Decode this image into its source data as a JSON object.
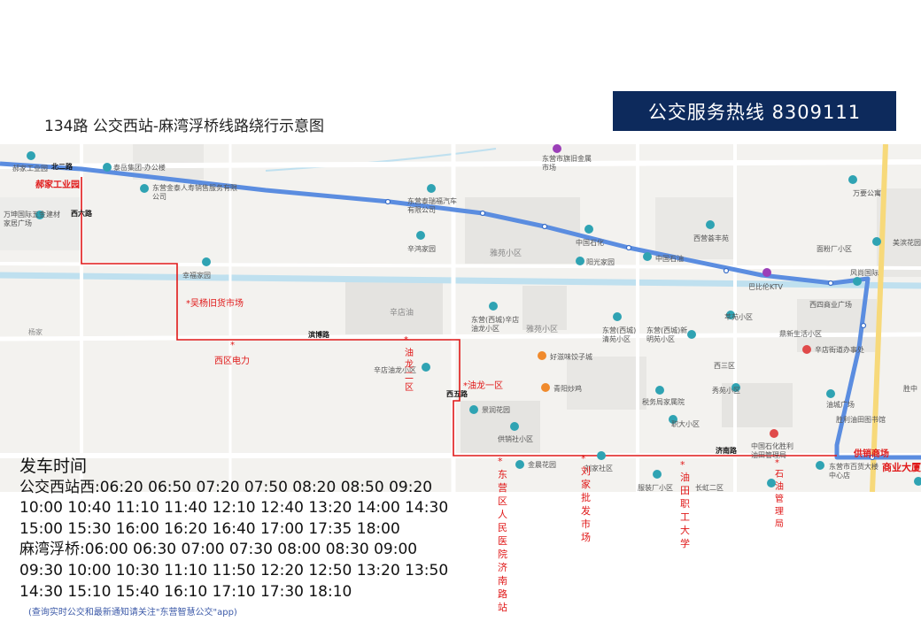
{
  "title": "134路 公交西站-麻湾浮桥线路绕行示意图",
  "hotline": "公交服务热线  8309111",
  "map": {
    "roads": {
      "north2": "北二路",
      "xiliu": "西六路",
      "binbo": "滨博路",
      "xiwu": "西五路",
      "jinan": "济南路"
    },
    "labels": {
      "haojia_small": "郝家工业园",
      "taiyue": "泰岳集团-办公楼",
      "dongying_jinye": "东营金泰人寿销售服务有限公司",
      "wanshen": "万坤国际五金建材家居广场",
      "dongying_tairui": "东营泰瑞福汽车有限公司",
      "xinhong": "辛鸿家园",
      "xinfu": "幸福家园",
      "xindian_oil": "辛店油",
      "yangjia": "杨家",
      "yatu": "雅苑小区",
      "yaju": "雅苑小区",
      "dongying_jiu": "东营市旗旧金属市场",
      "china_petro1": "中国石化",
      "china_petro2": "中国石油",
      "yangguang": "阳光家园",
      "xixiang": "西营荟丰苑",
      "wanyao": "万要公寓",
      "mianfen": "面粉厂小区",
      "meibin": "美滨花园",
      "fengshang": "风尚国际",
      "babilun": "巴比伦KTV",
      "xisi_square": "西四商业广场",
      "xingtaixi": "辛店油龙小区",
      "dongying_xicheng1": "东营(西城)辛店油龙小区",
      "dongying_xicheng2": "东营(西城)清苑小区",
      "dongying_xicheng3": "东营(西城)新明苑小区",
      "cuiyuan": "萃苑小区",
      "dingxin": "鼎新生活小区",
      "xindian_street": "辛店街道办事处",
      "haozi": "好滋味饺子城",
      "qingyang": "青阳炒鸡",
      "xisan": "西三区",
      "xiuyuan": "秀苑小区",
      "oilfield_kou": "油城广场",
      "shengli_library": "胜利油田图书馆",
      "shuiwu": "税务局家属院",
      "zhidaxiao": "职大小区",
      "jingrun": "景润花园",
      "gongxiao_she": "供销社小区",
      "jinchen": "金晨花园",
      "liujia_small": "刘家社区",
      "zhuangshi": "服装厂小区",
      "changhong": "长虹二区",
      "zhongguo_shili": "中国石化胜利油田管理局",
      "baihuo": "东营市百货大楼中心店",
      "shengxi": "胜中"
    },
    "stops": {
      "haojia": "郝家工业园",
      "wuyang": "*吴杨旧货市场",
      "xiqu": "西区电力",
      "youlong2": "油龙二区",
      "youlong1": "*油龙一区",
      "hospital": "东营区人民医院济南路站",
      "liujia": "刘家批发市场",
      "youtian": "油田职工大学",
      "shiyou": "石油管理局",
      "gongxiao": "供销商场",
      "shangye": "商业大厦"
    }
  },
  "schedule": {
    "heading": "发车时间",
    "lines": [
      "公交西站西:06:20 06:50 07:20 07:50 08:20 08:50 09:20",
      "10:00 10:40 11:10 11:40 12:10 12:40 13:20 14:00 14:30",
      "15:00 15:30 16:00 16:20 16:40 17:00 17:35 18:00",
      "麻湾浮桥:06:00 06:30 07:00 07:30 08:00 08:30 09:00",
      "09:30 10:00 10:30 11:10 11:50 12:20 12:50 13:20 13:50",
      "14:30 15:10 15:40 16:10 17:10 17:30 18:10"
    ],
    "note": "(查询实时公交和最新通知请关注\"东营智慧公交\"app)"
  },
  "colors": {
    "route_blue": "#5b8de0",
    "detour_red": "#e01818",
    "hotline_bg": "#0d2a5c"
  }
}
